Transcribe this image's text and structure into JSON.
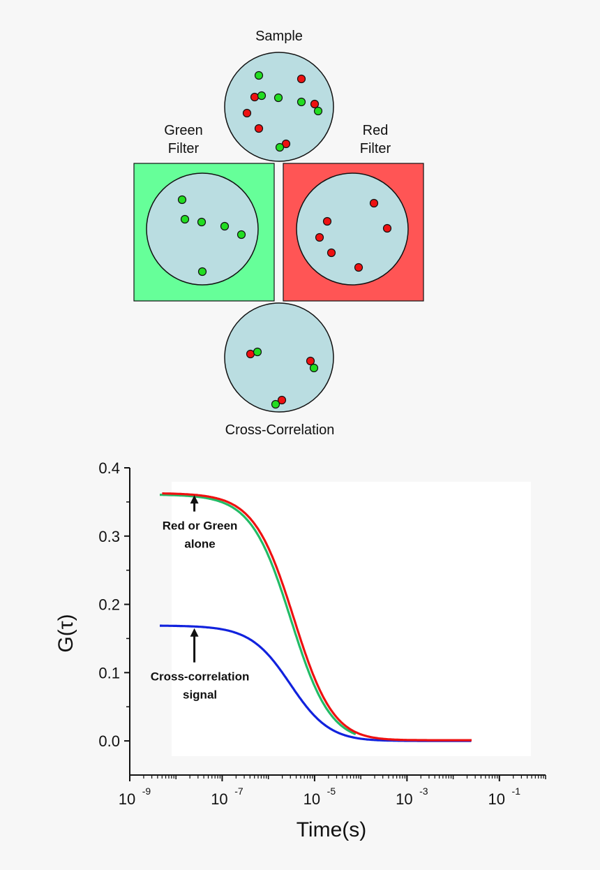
{
  "diagram": {
    "sample_label": "Sample",
    "green_filter_label": [
      "Green",
      "Filter"
    ],
    "red_filter_label": [
      "Red",
      "Filter"
    ],
    "cross_label": "Cross-Correlation",
    "colors": {
      "circle_fill": "#badde1",
      "green_dot": "#22dd22",
      "red_dot": "#ee1111",
      "green_panel": "#66ff99",
      "red_panel": "#ff5555"
    }
  },
  "chart_data": {
    "type": "line",
    "xscale": "log",
    "xlabel": "Time(s)",
    "ylabel": "G(τ)",
    "xlim": [
      1e-09,
      1
    ],
    "ylim": [
      -0.05,
      0.4
    ],
    "xticks": [
      {
        "value": 1e-09,
        "base": "10",
        "exp": "-9"
      },
      {
        "value": 1e-07,
        "base": "10",
        "exp": "-7"
      },
      {
        "value": 1e-05,
        "base": "10",
        "exp": "-5"
      },
      {
        "value": 0.001,
        "base": "10",
        "exp": "-3"
      },
      {
        "value": 0.1,
        "base": "10",
        "exp": "-1"
      }
    ],
    "yticks": [
      0.0,
      0.1,
      0.2,
      0.3,
      0.4
    ],
    "yticklabels": [
      "0.0",
      "0.1",
      "0.2",
      "0.3",
      "0.4"
    ],
    "series": [
      {
        "name": "Green alone",
        "color": "#22bb66",
        "G0": 0.361,
        "tauD": 3.1e-06,
        "offset": 0.0,
        "log10_start": -8.35,
        "log10_end": -4.1
      },
      {
        "name": "Red alone",
        "color": "#ee1111",
        "G0": 0.362,
        "tauD": 3.6e-06,
        "offset": 0.001,
        "log10_start": -8.3,
        "log10_end": -1.6
      },
      {
        "name": "Cross-correlation",
        "color": "#1122dd",
        "G0": 0.169,
        "tauD": 3e-06,
        "offset": 0.0,
        "log10_start": -8.35,
        "log10_end": -1.6
      }
    ],
    "annotations": [
      {
        "line1": "Red or Green",
        "line2": "alone",
        "x": 2.5e-08,
        "y": 0.336,
        "arrow_to_y": 0.36
      },
      {
        "line1": "Cross-correlation",
        "line2": "signal",
        "x": 2.5e-08,
        "y": 0.115,
        "arrow_to_y": 0.165
      }
    ]
  }
}
